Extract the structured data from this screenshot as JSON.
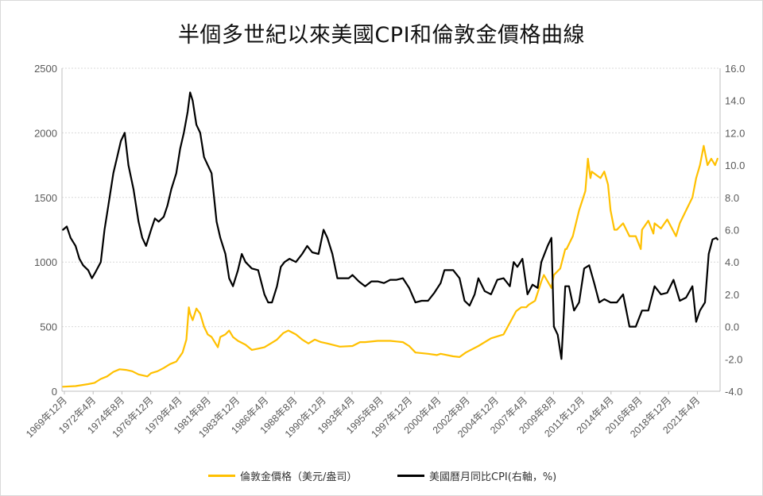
{
  "chart_data": {
    "type": "line",
    "title": "半個多世紀以來美國CPI和倫敦金價格曲線",
    "x_tick_labels": [
      "1969年12月",
      "1972年4月",
      "1974年8月",
      "1976年12月",
      "1979年4月",
      "1981年8月",
      "1983年12月",
      "1986年4月",
      "1988年8月",
      "1990年12月",
      "1993年4月",
      "1995年8月",
      "1997年12月",
      "2000年4月",
      "2002年8月",
      "2004年12月",
      "2007年4月",
      "2009年8月",
      "2011年12月",
      "2014年4月",
      "2016年8月",
      "2018年12月",
      "2021年4月"
    ],
    "y_left": {
      "min": 0,
      "max": 2500,
      "ticks": [
        "0",
        "500",
        "1000",
        "1500",
        "2000",
        "2500"
      ]
    },
    "y_right": {
      "min": -4.0,
      "max": 16.0,
      "ticks": [
        "-4.0",
        "-2.0",
        "0.0",
        "2.0",
        "4.0",
        "6.0",
        "8.0",
        "10.0",
        "12.0",
        "14.0",
        "16.0"
      ]
    },
    "grid": "horizontal",
    "legend_position": "bottom",
    "series": [
      {
        "name": "倫敦金價格（美元/盎司）",
        "axis": "left",
        "color": "#FFC000",
        "x": [
          1970,
          1971,
          1972,
          1972.5,
          1973,
          1973.5,
          1974,
          1974.5,
          1975,
          1975.5,
          1976,
          1976.7,
          1977,
          1977.5,
          1978,
          1978.5,
          1979,
          1979.5,
          1979.8,
          1980.0,
          1980.1,
          1980.3,
          1980.6,
          1980.9,
          1981.2,
          1981.5,
          1981.8,
          1982.3,
          1982.5,
          1982.9,
          1983.2,
          1983.5,
          1983.9,
          1984.5,
          1985.0,
          1985.5,
          1986.0,
          1986.5,
          1987.0,
          1987.5,
          1987.9,
          1988.5,
          1989.0,
          1989.5,
          1990.0,
          1990.5,
          1991.0,
          1992.0,
          1993.0,
          1993.6,
          1994.0,
          1995.0,
          1996.0,
          1996.5,
          1997.0,
          1997.5,
          1998.0,
          1999.0,
          1999.7,
          2000.0,
          2001.0,
          2001.5,
          2002.0,
          2003.0,
          2004.0,
          2005.0,
          2006.0,
          2006.4,
          2006.8,
          2007.0,
          2007.5,
          2008.0,
          2008.2,
          2008.8,
          2009.0,
          2009.5,
          2009.9,
          2010.0,
          2010.5,
          2011.0,
          2011.5,
          2011.7,
          2011.9,
          2012.0,
          2012.7,
          2013.0,
          2013.3,
          2013.5,
          2013.8,
          2014.0,
          2014.5,
          2015.0,
          2015.5,
          2015.9,
          2016.0,
          2016.5,
          2016.9,
          2017.0,
          2017.5,
          2018.0,
          2018.7,
          2019.0,
          2019.5,
          2020.0,
          2020.3,
          2020.6,
          2020.9,
          2021.0,
          2021.2,
          2021.5,
          2021.8,
          2022.0
        ],
        "values": [
          35,
          40,
          55,
          65,
          95,
          115,
          150,
          170,
          165,
          155,
          130,
          115,
          140,
          155,
          180,
          210,
          230,
          300,
          400,
          650,
          600,
          550,
          640,
          600,
          500,
          440,
          420,
          340,
          420,
          440,
          470,
          420,
          390,
          360,
          320,
          330,
          340,
          370,
          400,
          450,
          470,
          440,
          400,
          370,
          400,
          380,
          370,
          345,
          350,
          380,
          380,
          390,
          390,
          385,
          380,
          350,
          300,
          290,
          280,
          290,
          270,
          265,
          300,
          350,
          410,
          440,
          620,
          650,
          650,
          670,
          700,
          850,
          900,
          800,
          900,
          950,
          1100,
          1100,
          1200,
          1400,
          1550,
          1800,
          1650,
          1700,
          1650,
          1700,
          1600,
          1400,
          1250,
          1250,
          1300,
          1200,
          1200,
          1100,
          1250,
          1320,
          1220,
          1300,
          1260,
          1330,
          1200,
          1300,
          1400,
          1500,
          1650,
          1750,
          1900,
          1850,
          1750,
          1800,
          1750,
          1800
        ],
        "linewidth": 2.2
      },
      {
        "name": "美國曆月同比CPI(右軸，%)",
        "axis": "right",
        "color": "#000000",
        "x": [
          1970,
          1970.3,
          1970.6,
          1971.0,
          1971.3,
          1971.6,
          1972.0,
          1972.3,
          1972.6,
          1973.0,
          1973.3,
          1973.6,
          1974.0,
          1974.3,
          1974.6,
          1974.9,
          1975.2,
          1975.6,
          1976.0,
          1976.3,
          1976.6,
          1977.0,
          1977.3,
          1977.6,
          1978.0,
          1978.3,
          1978.6,
          1979.0,
          1979.3,
          1979.6,
          1979.9,
          1980.1,
          1980.3,
          1980.6,
          1980.9,
          1981.2,
          1981.5,
          1981.8,
          1982.2,
          1982.5,
          1982.9,
          1983.2,
          1983.5,
          1983.9,
          1984.2,
          1984.5,
          1985.0,
          1985.5,
          1986.0,
          1986.3,
          1986.6,
          1987.0,
          1987.3,
          1987.6,
          1988.0,
          1988.5,
          1989.0,
          1989.4,
          1989.8,
          1990.3,
          1990.7,
          1991.0,
          1991.4,
          1991.8,
          1992.3,
          1992.7,
          1993.0,
          1993.5,
          1994.0,
          1994.5,
          1995.0,
          1995.5,
          1996.0,
          1996.5,
          1997.0,
          1997.5,
          1998.0,
          1998.5,
          1999.0,
          1999.5,
          2000.0,
          2000.3,
          2000.6,
          2001.0,
          2001.5,
          2001.9,
          2002.3,
          2002.7,
          2003.0,
          2003.5,
          2004.0,
          2004.5,
          2005.0,
          2005.5,
          2005.8,
          2006.1,
          2006.5,
          2006.9,
          2007.3,
          2007.7,
          2008.0,
          2008.5,
          2008.8,
          2009.0,
          2009.3,
          2009.6,
          2009.9,
          2010.2,
          2010.6,
          2011.0,
          2011.4,
          2011.8,
          2012.2,
          2012.6,
          2013.0,
          2013.5,
          2014.0,
          2014.5,
          2015.0,
          2015.5,
          2016.0,
          2016.5,
          2017.0,
          2017.5,
          2018.0,
          2018.5,
          2019.0,
          2019.5,
          2020.0,
          2020.3,
          2020.6,
          2021.0,
          2021.3,
          2021.6,
          2021.9,
          2022.0
        ],
        "values": [
          6.0,
          6.2,
          5.5,
          5.0,
          4.2,
          3.8,
          3.5,
          3.0,
          3.4,
          4.0,
          6.0,
          7.5,
          9.5,
          10.5,
          11.5,
          12.0,
          10.0,
          8.5,
          6.5,
          5.5,
          5.0,
          6.0,
          6.7,
          6.5,
          6.8,
          7.5,
          8.5,
          9.5,
          11.0,
          12.0,
          13.3,
          14.5,
          14.0,
          12.5,
          12.0,
          10.5,
          10.0,
          9.5,
          6.5,
          5.5,
          4.5,
          3.0,
          2.5,
          3.5,
          4.5,
          4.0,
          3.6,
          3.5,
          2.0,
          1.5,
          1.5,
          2.5,
          3.7,
          4.0,
          4.2,
          4.0,
          4.5,
          5.0,
          4.6,
          4.5,
          6.0,
          5.5,
          4.5,
          3.0,
          3.0,
          3.0,
          3.2,
          2.8,
          2.5,
          2.8,
          2.8,
          2.7,
          2.9,
          2.9,
          3.0,
          2.4,
          1.5,
          1.6,
          1.6,
          2.1,
          2.7,
          3.5,
          3.5,
          3.5,
          3.0,
          1.6,
          1.3,
          2.0,
          3.0,
          2.2,
          2.0,
          2.9,
          3.0,
          2.5,
          4.0,
          3.7,
          4.2,
          2.0,
          2.6,
          2.4,
          4.0,
          5.0,
          5.5,
          0.0,
          -0.5,
          -2.0,
          2.5,
          2.5,
          1.0,
          1.5,
          3.6,
          3.8,
          2.7,
          1.5,
          1.7,
          1.5,
          1.5,
          2.0,
          0.0,
          0.0,
          1.0,
          1.0,
          2.5,
          2.0,
          2.1,
          2.9,
          1.6,
          1.8,
          2.5,
          0.3,
          1.0,
          1.5,
          4.5,
          5.4,
          5.5,
          5.4
        ],
        "linewidth": 2.2
      }
    ]
  }
}
